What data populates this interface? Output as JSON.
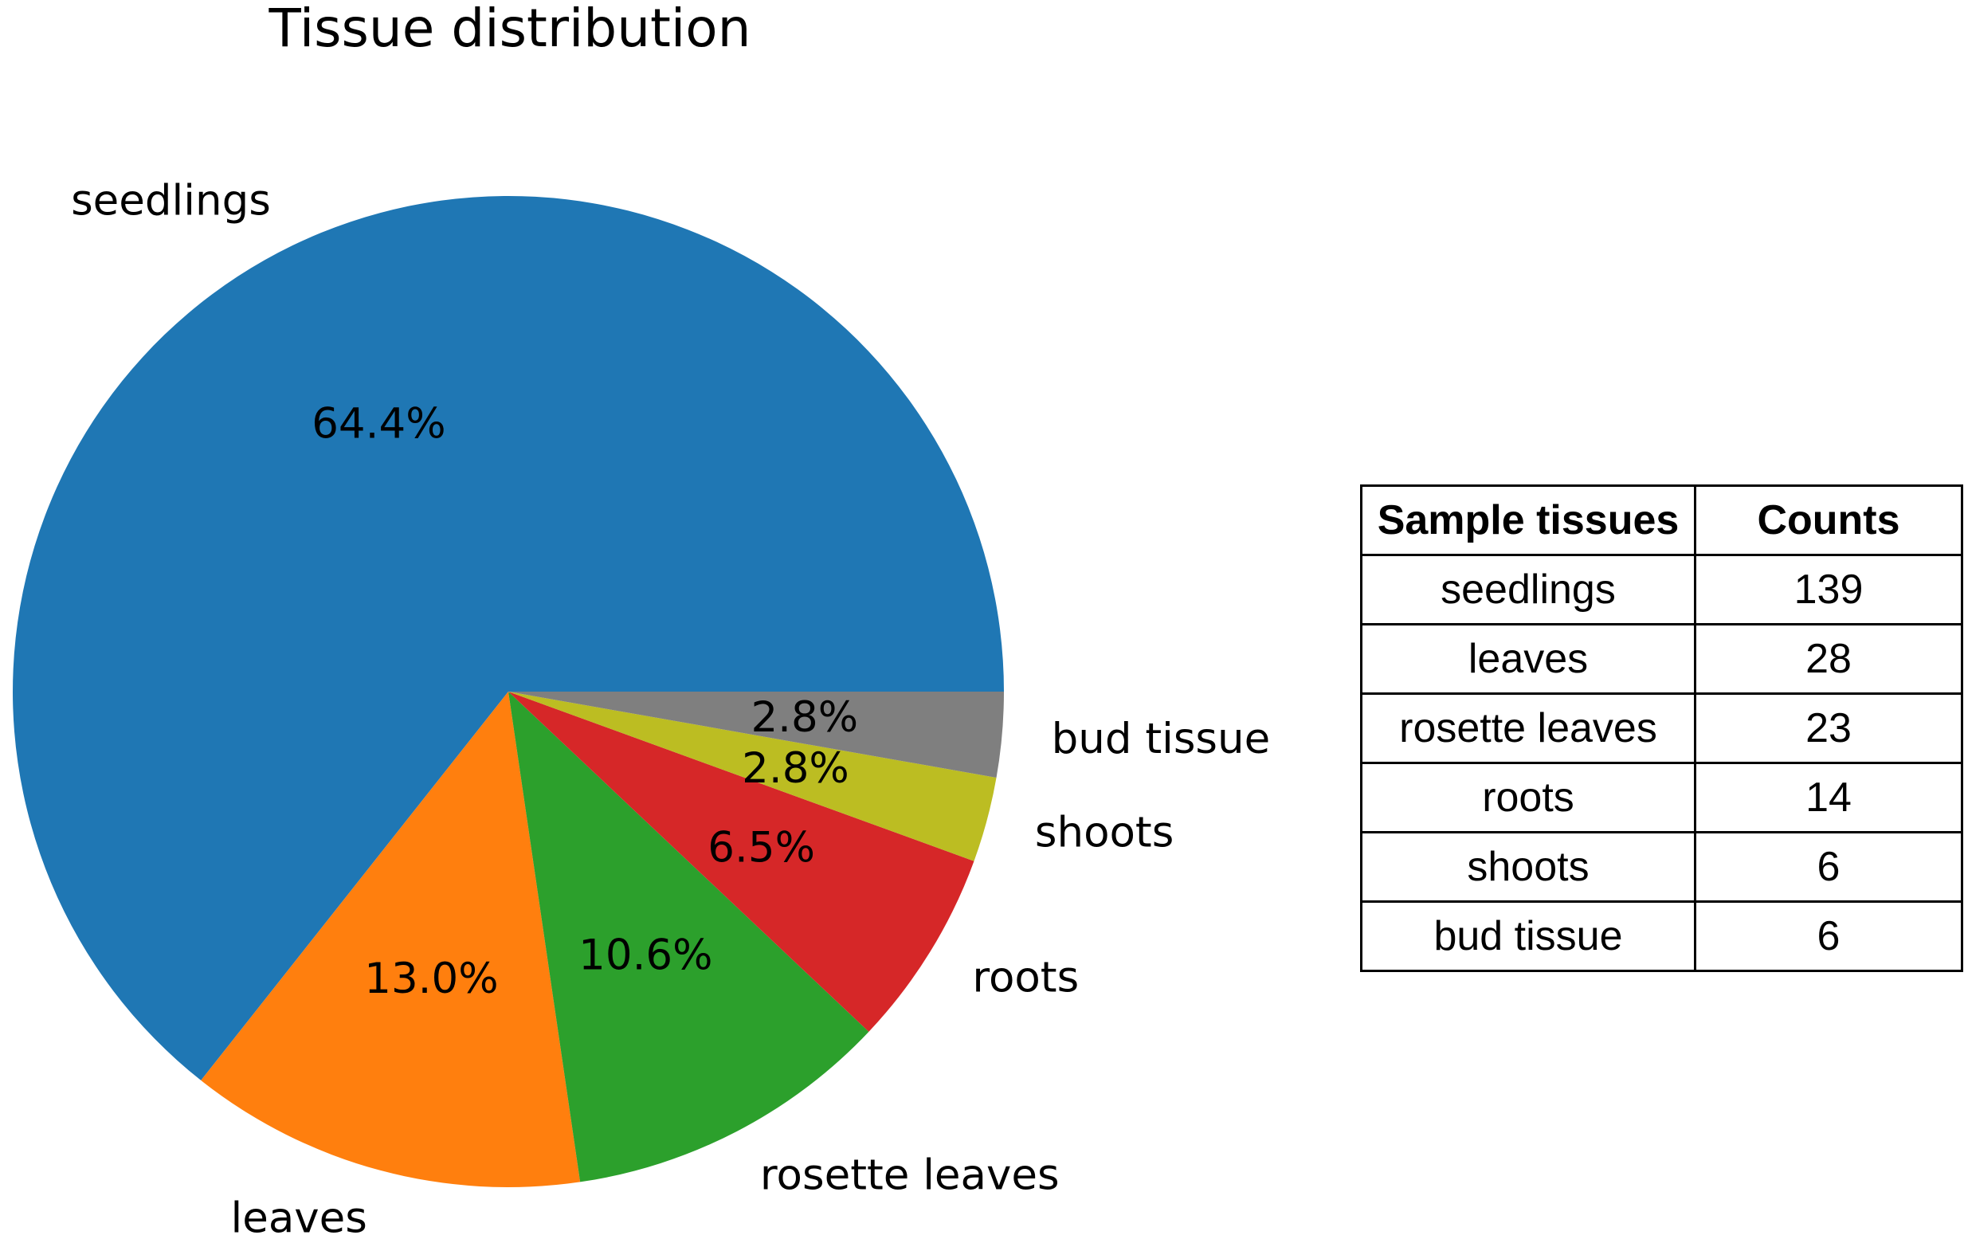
{
  "chart_data": {
    "type": "pie",
    "title": "Tissue distribution",
    "categories": [
      "seedlings",
      "leaves",
      "rosette leaves",
      "roots",
      "shoots",
      "bud tissue"
    ],
    "values": [
      139,
      28,
      23,
      14,
      6,
      6
    ],
    "percent_labels": [
      "64.4%",
      "13.0%",
      "10.6%",
      "6.5%",
      "2.8%",
      "2.8%"
    ],
    "colors": [
      "#1f77b4",
      "#ff7f0e",
      "#2ca02c",
      "#d62728",
      "#bcbd22",
      "#7f7f7f"
    ],
    "start_angle_deg": 0,
    "direction": "counterclockwise"
  },
  "table": {
    "headers": [
      "Sample tissues",
      "Counts"
    ],
    "rows": [
      [
        "seedlings",
        "139"
      ],
      [
        "leaves",
        "28"
      ],
      [
        "rosette leaves",
        "23"
      ],
      [
        "roots",
        "14"
      ],
      [
        "shoots",
        "6"
      ],
      [
        "bud tissue",
        "6"
      ]
    ]
  }
}
